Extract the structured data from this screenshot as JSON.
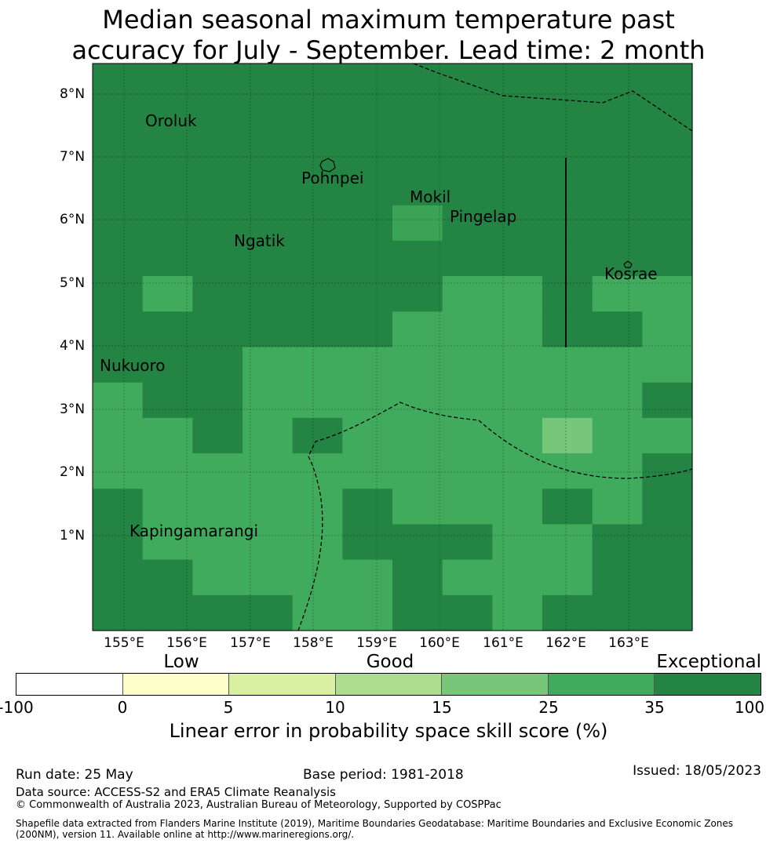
{
  "title": {
    "line1": "Median seasonal maximum temperature past",
    "line2": "accuracy for July - September. Lead time: 2 month"
  },
  "map": {
    "lat_labels": [
      "8°N",
      "7°N",
      "6°N",
      "5°N",
      "4°N",
      "3°N",
      "2°N",
      "1°N"
    ],
    "lon_labels": [
      "155°E",
      "156°E",
      "157°E",
      "158°E",
      "159°E",
      "160°E",
      "161°E",
      "162°E",
      "163°E"
    ],
    "places": [
      "Oroluk",
      "Pohnpei",
      "Mokil",
      "Pingelap",
      "Ngatik",
      "Kosrae",
      "Nukuoro",
      "Kapingamarangi"
    ],
    "grid_rows": [
      "DDDDDDDDDDDD",
      "DDDDDDDDDDDD",
      "DDDDDDDDDDDD",
      "DDDDDDDDDDDD",
      "DDDDDDLDDDDD",
      "DDDDDDDDDDDD",
      "DMDDDDDMMDMM",
      "DDDDDDMMMDDM",
      "DDDMMMMMMMMM",
      "MDDMMMMMMMMD",
      "MMDMDMMMMPMM",
      "MMMMMMMMMMMD",
      "DMMMMDMMMDMD",
      "DMMMMDDDMMDD",
      "DDMMMMDMMMDD",
      "DDDDMMDDMDDD"
    ],
    "colors": {
      "D": "#238443",
      "M": "#41ab5d",
      "L": "#3aa356",
      "P": "#78c679"
    }
  },
  "legend": {
    "categories": [
      "Low",
      "Good",
      "Exceptional"
    ],
    "colors": [
      "#ffffff",
      "#ffffcc",
      "#d9f0a3",
      "#addd8e",
      "#78c679",
      "#41ab5d",
      "#238443"
    ],
    "ticks": [
      "-100",
      "0",
      "5",
      "10",
      "15",
      "25",
      "35",
      "100"
    ],
    "label": "Linear error in probability space skill score (%)"
  },
  "footer": {
    "run_date": "Run date: 25 May",
    "base_period": "Base period: 1981-2018",
    "issued": "Issued: 18/05/2023",
    "data_source": "Data source: ACCESS-S2 and ERA5 Climate Reanalysis",
    "copyright": "© Commonwealth of Australia 2023, Australian Bureau of Meteorology, Supported by COSPPac",
    "shapefile_line1": "Shapefile data extracted from Flanders Marine Institute (2019), Maritime Boundaries Geodatabase: Maritime Boundaries and Exclusive Economic Zones",
    "shapefile_line2": "(200NM), version 11. Available online at http://www.marineregions.org/."
  }
}
